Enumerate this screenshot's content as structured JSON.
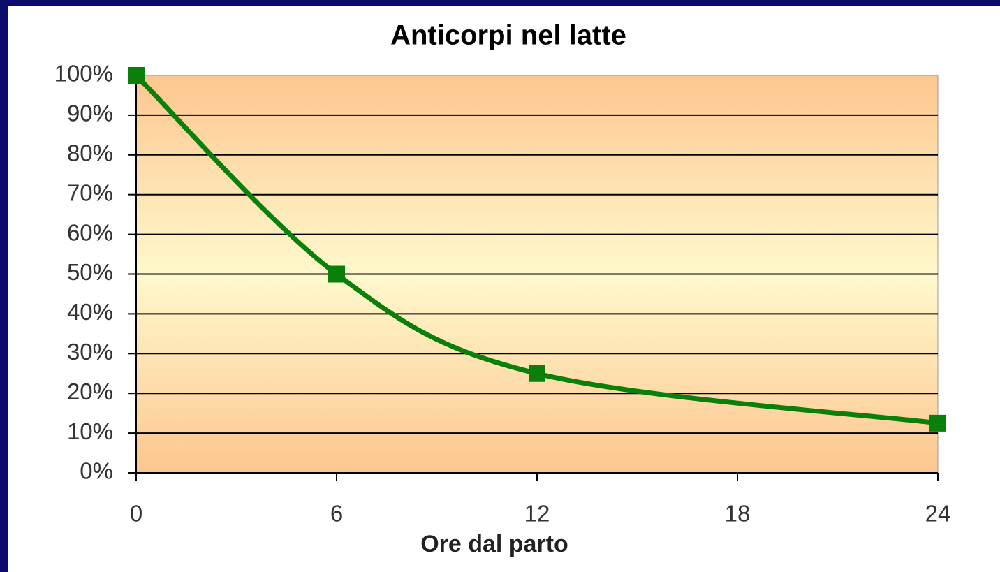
{
  "chart_data": {
    "type": "line",
    "title": "Anticorpi nel latte",
    "x_label": "Ore dal parto",
    "x": [
      0,
      6,
      12,
      24
    ],
    "series": [
      {
        "name": "Anticorpi",
        "color": "#0a7f0a",
        "values": [
          100,
          50,
          25,
          12.5
        ]
      }
    ],
    "xlim": [
      0,
      24
    ],
    "xticks": [
      0,
      6,
      12,
      18,
      24
    ],
    "ylim": [
      0,
      100
    ],
    "yticks": [
      {
        "value": 0,
        "label": "0%"
      },
      {
        "value": 10,
        "label": "10%"
      },
      {
        "value": 20,
        "label": "20%"
      },
      {
        "value": 30,
        "label": "30%"
      },
      {
        "value": 40,
        "label": "40%"
      },
      {
        "value": 50,
        "label": "50%"
      },
      {
        "value": 60,
        "label": "60%"
      },
      {
        "value": 70,
        "label": "70%"
      },
      {
        "value": 80,
        "label": "80%"
      },
      {
        "value": 90,
        "label": "90%"
      },
      {
        "value": 100,
        "label": "100%"
      }
    ],
    "grid": true
  }
}
